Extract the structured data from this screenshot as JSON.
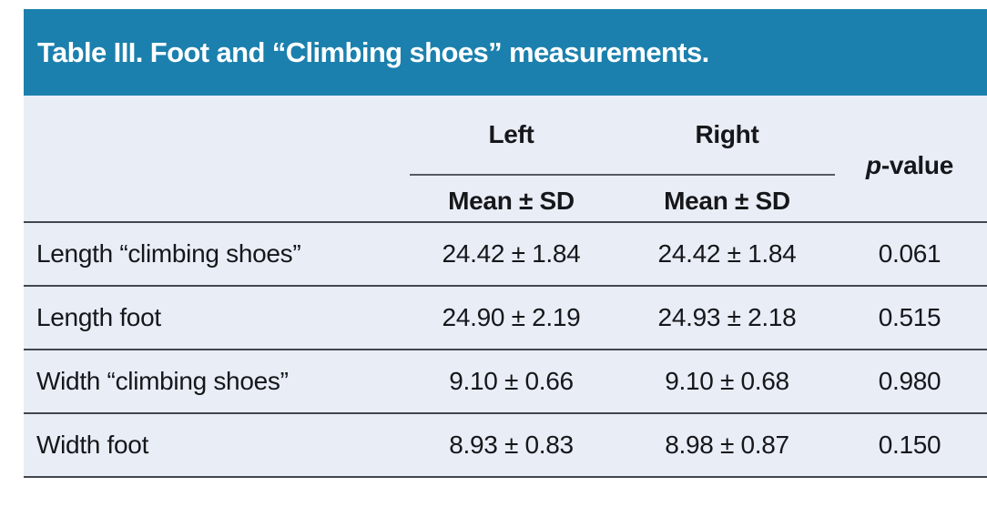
{
  "table": {
    "title": "Table III. Foot and “Climbing shoes” measurements.",
    "header": {
      "group_left": "Left",
      "group_right": "Right",
      "sub_left": "Mean ± SD",
      "sub_right": "Mean ± SD",
      "p_italic": "p",
      "p_rest": "-value"
    },
    "rows": [
      {
        "label": "Length “climbing shoes”",
        "left_mean_sd": "24.42 ± 1.84",
        "right_mean_sd": "24.42 ± 1.84",
        "p_value": "0.061"
      },
      {
        "label": "Length foot",
        "left_mean_sd": "24.90 ± 2.19",
        "right_mean_sd": "24.93 ± 2.18",
        "p_value": "0.515"
      },
      {
        "label": "Width “climbing shoes”",
        "left_mean_sd": "9.10 ± 0.66",
        "right_mean_sd": "9.10 ± 0.68",
        "p_value": "0.980"
      },
      {
        "label": "Width foot",
        "left_mean_sd": "8.93 ± 0.83",
        "right_mean_sd": "8.98 ± 0.87",
        "p_value": "0.150"
      }
    ],
    "colors": {
      "header_bg": "#1b80ad",
      "body_bg": "#e9edf6",
      "rule_heavy": "#42464d",
      "rule_thin": "#565b63",
      "title_text": "#ffffff",
      "body_text": "#15171a"
    }
  },
  "chart_data": {
    "type": "table",
    "title": "Table III. Foot and “Climbing shoes” measurements.",
    "columns": [
      "",
      "Left Mean ± SD",
      "Right Mean ± SD",
      "p-value"
    ],
    "rows": [
      [
        "Length “climbing shoes”",
        "24.42 ± 1.84",
        "24.42 ± 1.84",
        "0.061"
      ],
      [
        "Length foot",
        "24.90 ± 2.19",
        "24.93 ± 2.18",
        "0.515"
      ],
      [
        "Width “climbing shoes”",
        "9.10 ± 0.66",
        "9.10 ± 0.68",
        "0.980"
      ],
      [
        "Width foot",
        "8.93 ± 0.83",
        "8.98 ± 0.87",
        "0.150"
      ]
    ]
  }
}
